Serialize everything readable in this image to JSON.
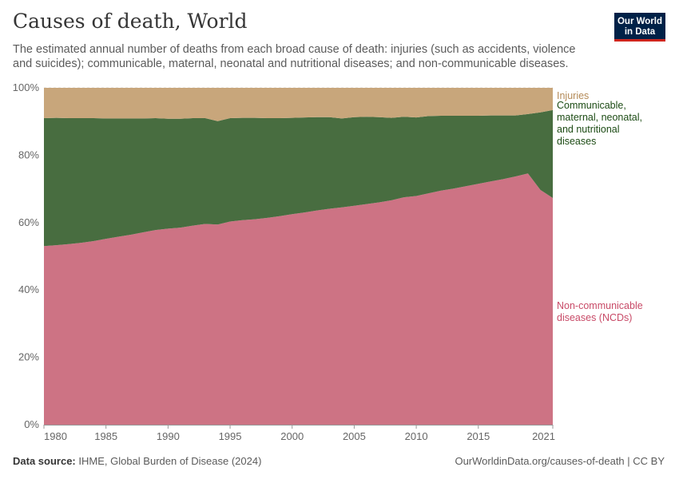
{
  "header": {
    "title": "Causes of death, World",
    "subtitle": "The estimated annual number of deaths from each broad cause of death: injuries (such as accidents, violence and suicides); communicable, maternal, neonatal and nutritional diseases; and non-communicable diseases.",
    "logo_line1": "Our World",
    "logo_line2": "in Data"
  },
  "footer": {
    "source_label": "Data source:",
    "source_text": "IHME, Global Burden of Disease (2024)",
    "url_text": "OurWorldinData.org/causes-of-death | CC BY"
  },
  "chart_data": {
    "type": "area",
    "stacked": true,
    "relative": true,
    "x": [
      1980,
      1981,
      1982,
      1983,
      1984,
      1985,
      1986,
      1987,
      1988,
      1989,
      1990,
      1991,
      1992,
      1993,
      1994,
      1995,
      1996,
      1997,
      1998,
      1999,
      2000,
      2001,
      2002,
      2003,
      2004,
      2005,
      2006,
      2007,
      2008,
      2009,
      2010,
      2011,
      2012,
      2013,
      2014,
      2015,
      2016,
      2017,
      2018,
      2019,
      2020,
      2021
    ],
    "x_ticks": [
      1980,
      1985,
      1990,
      1995,
      2000,
      2005,
      2010,
      2015,
      2021
    ],
    "y_ticks": [
      "0%",
      "20%",
      "40%",
      "60%",
      "80%",
      "100%"
    ],
    "ylim": [
      0,
      100
    ],
    "series": [
      {
        "name": "Non-communicable diseases (NCDs)",
        "label_lines": [
          "Non-communicable",
          "diseases (NCDs)"
        ],
        "color": "#cd7384",
        "label_color": "#c84a67",
        "values": [
          53.0,
          53.3,
          53.6,
          54.0,
          54.5,
          55.2,
          55.8,
          56.4,
          57.1,
          57.8,
          58.2,
          58.5,
          59.1,
          59.6,
          59.4,
          60.3,
          60.7,
          61.0,
          61.4,
          61.9,
          62.5,
          63.0,
          63.6,
          64.1,
          64.5,
          65.0,
          65.5,
          66.0,
          66.6,
          67.5,
          67.9,
          68.7,
          69.5,
          70.1,
          70.8,
          71.5,
          72.2,
          72.9,
          73.7,
          74.6,
          69.7,
          67.3
        ]
      },
      {
        "name": "Communicable, maternal, neonatal, and nutritional diseases",
        "label_lines": [
          "Communicable,",
          "maternal, neonatal,",
          "and nutritional",
          "diseases"
        ],
        "color": "#486d40",
        "label_color": "#1c4b14",
        "values": [
          38.0,
          37.8,
          37.4,
          37.0,
          36.5,
          35.7,
          35.1,
          34.5,
          33.8,
          33.2,
          32.6,
          32.3,
          31.9,
          31.4,
          30.7,
          30.7,
          30.4,
          30.1,
          29.6,
          29.1,
          28.6,
          28.2,
          27.7,
          27.2,
          26.4,
          26.3,
          25.9,
          25.3,
          24.5,
          23.9,
          23.3,
          22.9,
          22.2,
          21.6,
          20.9,
          20.2,
          19.6,
          18.9,
          18.1,
          17.6,
          23.0,
          26.1
        ]
      },
      {
        "name": "Injuries",
        "label_lines": [
          "Injuries"
        ],
        "color": "#c8a67b",
        "label_color": "#b48a57",
        "values": [
          9.0,
          8.9,
          9.0,
          9.0,
          9.0,
          9.1,
          9.1,
          9.1,
          9.1,
          9.0,
          9.2,
          9.2,
          9.0,
          9.0,
          9.9,
          9.0,
          8.9,
          8.9,
          9.0,
          9.0,
          8.9,
          8.8,
          8.7,
          8.7,
          9.1,
          8.7,
          8.6,
          8.7,
          8.9,
          8.6,
          8.8,
          8.4,
          8.3,
          8.3,
          8.3,
          8.3,
          8.2,
          8.2,
          8.2,
          7.8,
          7.3,
          6.6
        ]
      }
    ]
  }
}
